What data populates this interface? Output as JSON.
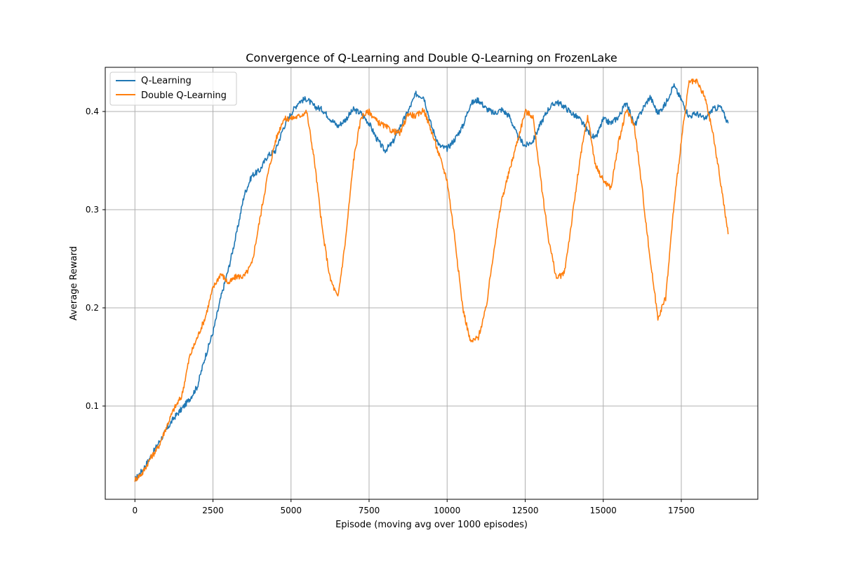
{
  "chart_data": {
    "type": "line",
    "title": "Convergence of Q-Learning and Double Q-Learning on FrozenLake",
    "xlabel": "Episode (moving avg over 1000 episodes)",
    "ylabel": "Average Reward",
    "xlim": [
      -950,
      19950
    ],
    "ylim": [
      0.005,
      0.445
    ],
    "xticks": [
      0,
      2500,
      5000,
      7500,
      10000,
      12500,
      15000,
      17500
    ],
    "yticks": [
      0.1,
      0.2,
      0.3,
      0.4
    ],
    "xtick_labels": [
      "0",
      "2500",
      "5000",
      "7500",
      "10000",
      "12500",
      "15000",
      "17500"
    ],
    "ytick_labels": [
      "0.1",
      "0.2",
      "0.3",
      "0.4"
    ],
    "grid": true,
    "legend_position": "top-left",
    "series": [
      {
        "name": "Q-Learning",
        "color": "#1f77b4",
        "x": [
          0,
          250,
          500,
          750,
          1000,
          1250,
          1500,
          1750,
          2000,
          2250,
          2500,
          2750,
          3000,
          3250,
          3500,
          3750,
          4000,
          4250,
          4500,
          4750,
          5000,
          5250,
          5500,
          5750,
          6000,
          6250,
          6500,
          6750,
          7000,
          7250,
          7500,
          7750,
          8000,
          8250,
          8500,
          8750,
          9000,
          9250,
          9500,
          9750,
          10000,
          10250,
          10500,
          10750,
          11000,
          11250,
          11500,
          11750,
          12000,
          12250,
          12500,
          12750,
          13000,
          13250,
          13500,
          13750,
          14000,
          14250,
          14500,
          14750,
          15000,
          15250,
          15500,
          15750,
          16000,
          16250,
          16500,
          16750,
          17000,
          17250,
          17500,
          17750,
          18000,
          18250,
          18500,
          18750,
          19000
        ],
        "values": [
          0.025,
          0.035,
          0.048,
          0.062,
          0.075,
          0.088,
          0.097,
          0.107,
          0.12,
          0.15,
          0.175,
          0.21,
          0.24,
          0.275,
          0.315,
          0.335,
          0.34,
          0.355,
          0.36,
          0.383,
          0.398,
          0.41,
          0.413,
          0.405,
          0.402,
          0.393,
          0.385,
          0.392,
          0.402,
          0.398,
          0.388,
          0.372,
          0.36,
          0.368,
          0.385,
          0.4,
          0.418,
          0.415,
          0.385,
          0.365,
          0.362,
          0.372,
          0.385,
          0.408,
          0.412,
          0.403,
          0.398,
          0.402,
          0.395,
          0.375,
          0.365,
          0.37,
          0.388,
          0.403,
          0.41,
          0.405,
          0.398,
          0.392,
          0.38,
          0.372,
          0.392,
          0.388,
          0.395,
          0.41,
          0.385,
          0.402,
          0.415,
          0.398,
          0.408,
          0.427,
          0.412,
          0.395,
          0.398,
          0.392,
          0.402,
          0.405,
          0.388
        ]
      },
      {
        "name": "Double Q-Learning",
        "color": "#ff7f0e",
        "x": [
          0,
          250,
          500,
          750,
          1000,
          1250,
          1500,
          1750,
          2000,
          2250,
          2500,
          2750,
          3000,
          3250,
          3500,
          3750,
          4000,
          4250,
          4500,
          4750,
          5000,
          5250,
          5500,
          5750,
          6000,
          6250,
          6500,
          6750,
          7000,
          7250,
          7500,
          7750,
          8000,
          8250,
          8500,
          8750,
          9000,
          9250,
          9500,
          9750,
          10000,
          10250,
          10500,
          10750,
          11000,
          11250,
          11500,
          11750,
          12000,
          12250,
          12500,
          12750,
          13000,
          13250,
          13500,
          13750,
          14000,
          14250,
          14500,
          14750,
          15000,
          15250,
          15500,
          15750,
          16000,
          16250,
          16500,
          16750,
          17000,
          17250,
          17500,
          17750,
          18000,
          18250,
          18500,
          18750,
          19000
        ],
        "values": [
          0.025,
          0.032,
          0.047,
          0.058,
          0.078,
          0.097,
          0.11,
          0.15,
          0.17,
          0.19,
          0.22,
          0.235,
          0.225,
          0.232,
          0.232,
          0.245,
          0.29,
          0.335,
          0.37,
          0.392,
          0.393,
          0.395,
          0.4,
          0.35,
          0.28,
          0.23,
          0.21,
          0.27,
          0.35,
          0.395,
          0.4,
          0.39,
          0.385,
          0.38,
          0.378,
          0.398,
          0.395,
          0.402,
          0.38,
          0.355,
          0.33,
          0.27,
          0.2,
          0.165,
          0.17,
          0.2,
          0.26,
          0.31,
          0.34,
          0.37,
          0.4,
          0.395,
          0.33,
          0.27,
          0.23,
          0.235,
          0.29,
          0.35,
          0.395,
          0.345,
          0.33,
          0.322,
          0.37,
          0.402,
          0.385,
          0.32,
          0.25,
          0.19,
          0.21,
          0.3,
          0.37,
          0.43,
          0.43,
          0.415,
          0.38,
          0.33,
          0.275
        ]
      }
    ]
  }
}
